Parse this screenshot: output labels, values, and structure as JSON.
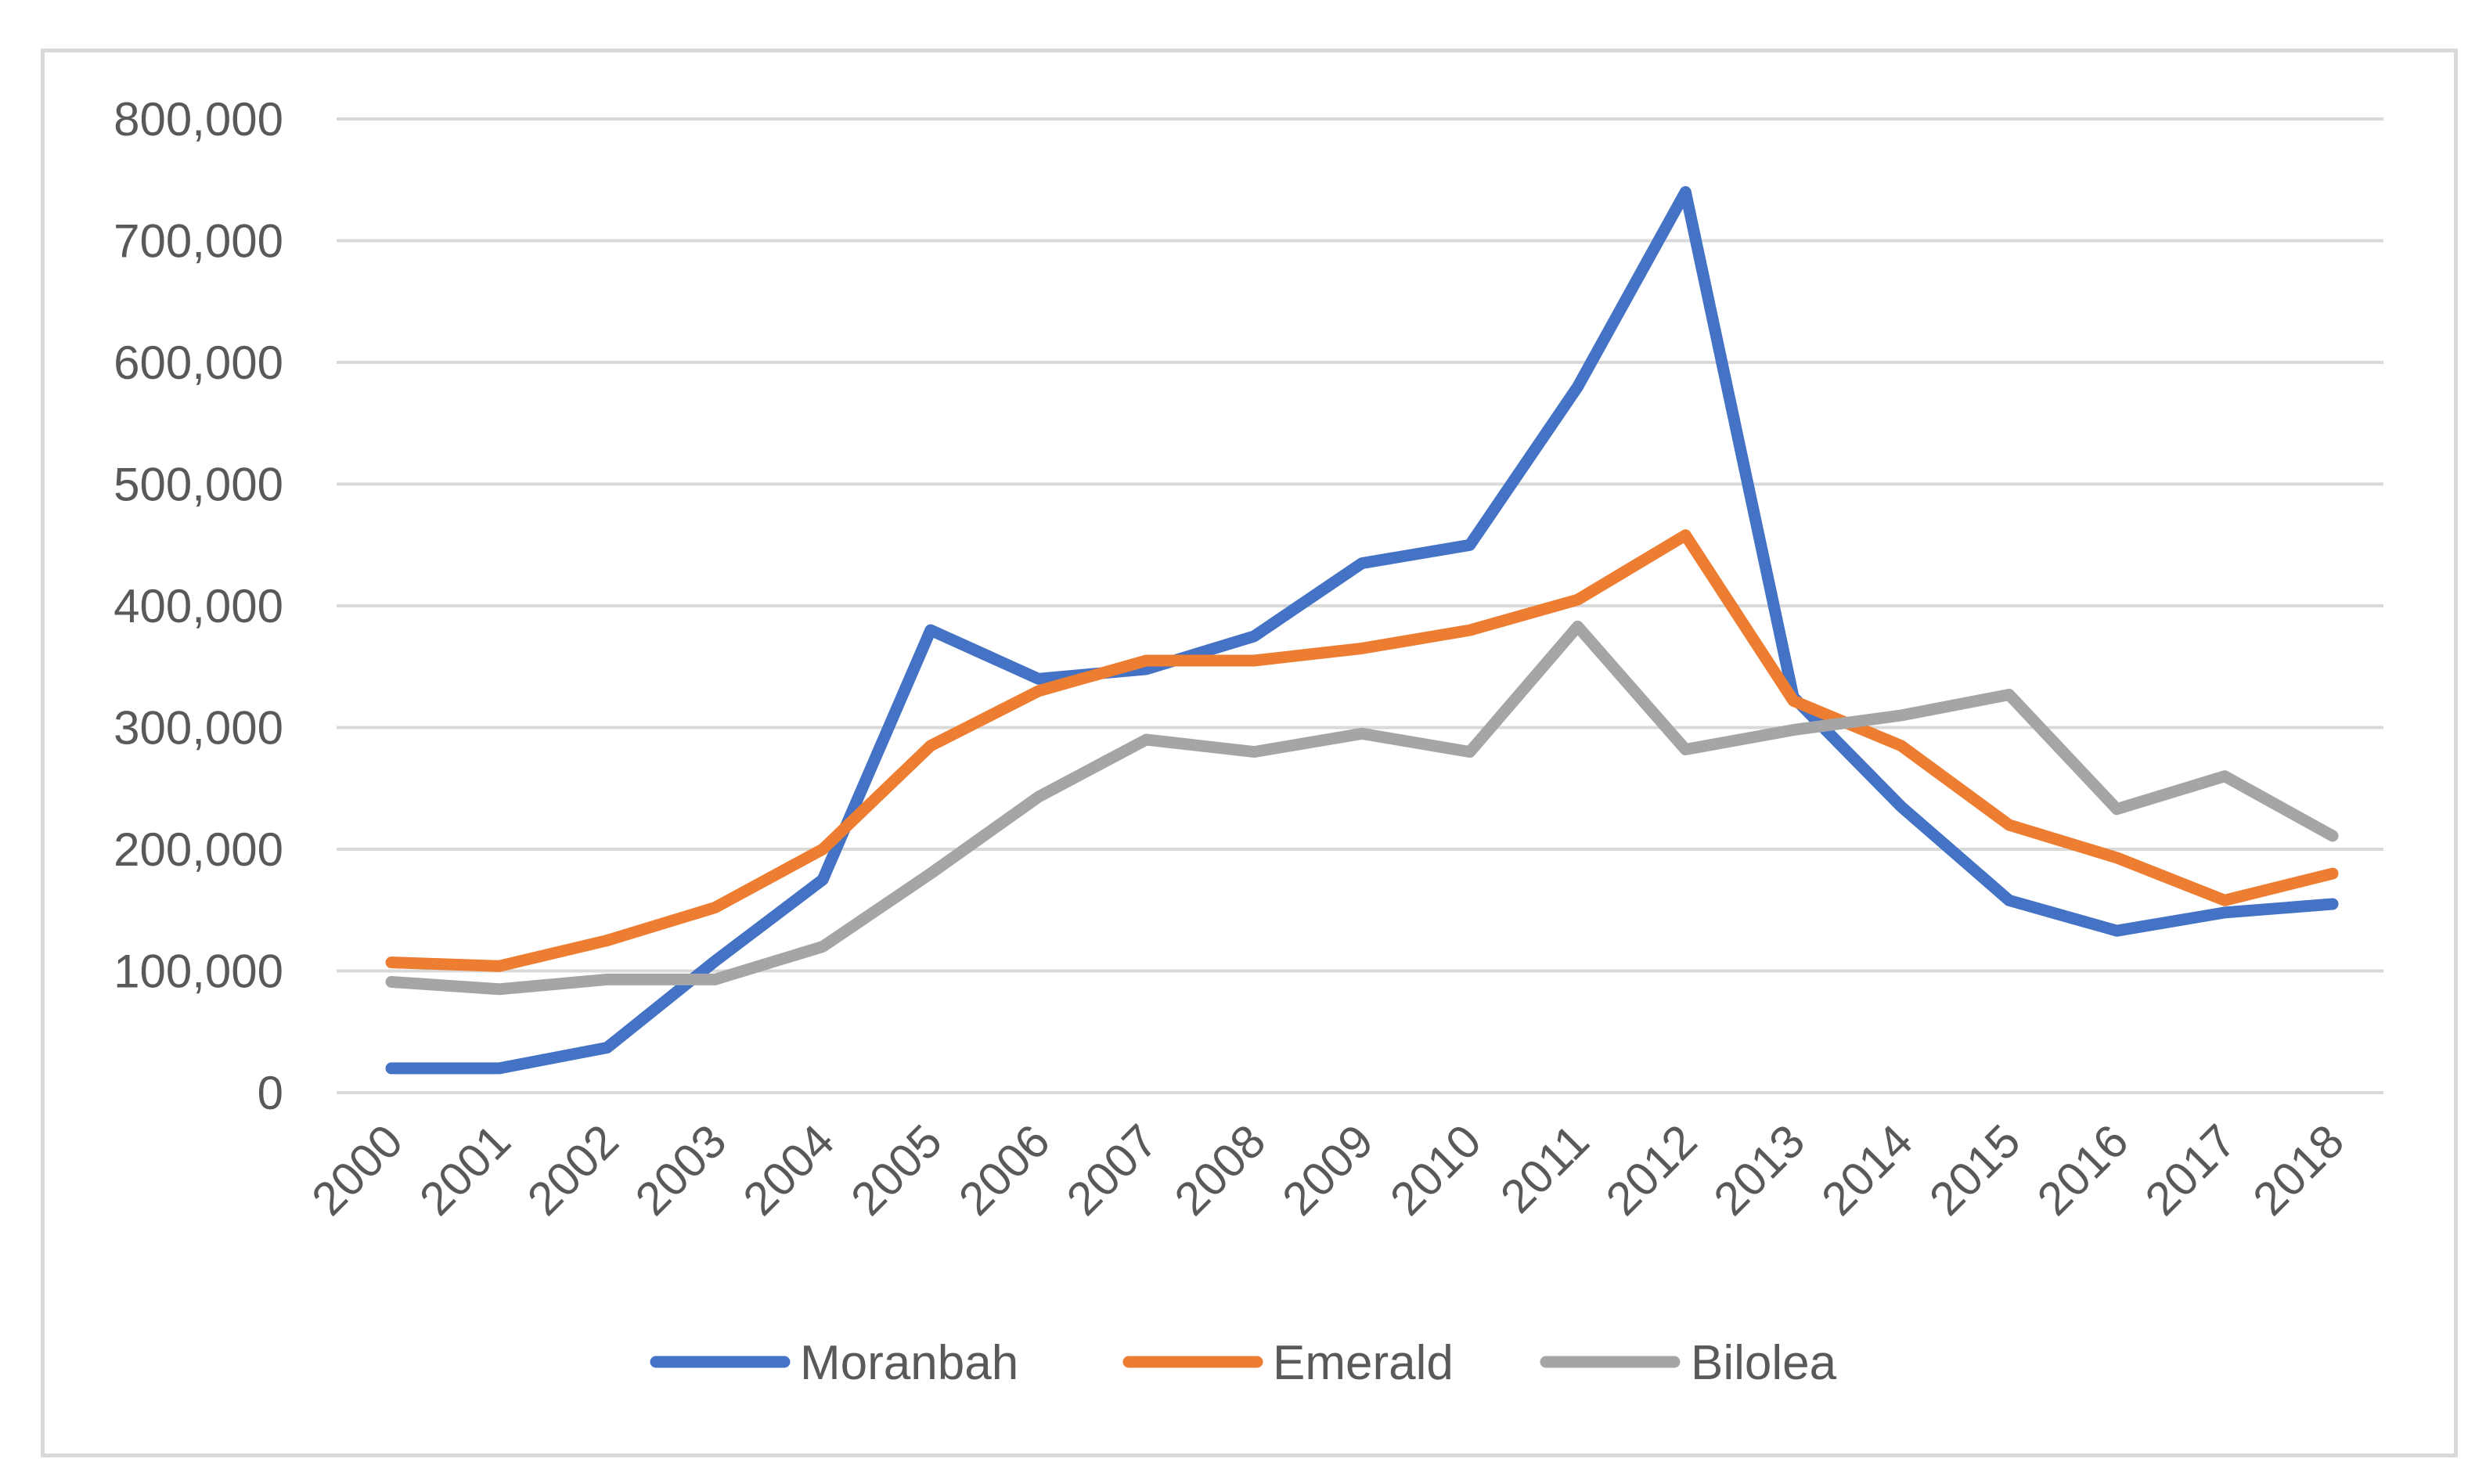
{
  "chart_data": {
    "type": "line",
    "title": "",
    "xlabel": "",
    "ylabel": "",
    "categories": [
      "2000",
      "2001",
      "2002",
      "2003",
      "2004",
      "2005",
      "2006",
      "2007",
      "2008",
      "2009",
      "2010",
      "2011",
      "2012",
      "2013",
      "2014",
      "2015",
      "2016",
      "2017",
      "2018"
    ],
    "ylim": [
      0,
      800000
    ],
    "yticks": [
      0,
      100000,
      200000,
      300000,
      400000,
      500000,
      600000,
      700000,
      800000
    ],
    "ytick_labels": [
      "0",
      "100,000",
      "200,000",
      "300,000",
      "400,000",
      "500,000",
      "600,000",
      "700,000",
      "800,000"
    ],
    "grid": "horizontal",
    "legend_position": "bottom",
    "series": [
      {
        "name": "Moranbah",
        "color": "#4472c4",
        "values": [
          20000,
          20000,
          37000,
          108000,
          175000,
          380000,
          340000,
          348000,
          375000,
          435000,
          450000,
          580000,
          740000,
          325000,
          235000,
          158000,
          133000,
          148000,
          155000
        ]
      },
      {
        "name": "Emerald",
        "color": "#ed7d31",
        "values": [
          107000,
          104000,
          125000,
          152000,
          200000,
          285000,
          330000,
          355000,
          355000,
          365000,
          380000,
          405000,
          458000,
          322000,
          285000,
          220000,
          193000,
          158000,
          180000
        ]
      },
      {
        "name": "Bilolea",
        "color": "#a5a5a5",
        "values": [
          91000,
          85000,
          93000,
          93000,
          120000,
          180000,
          243000,
          290000,
          280000,
          295000,
          280000,
          383000,
          282000,
          298000,
          310000,
          327000,
          233000,
          260000,
          211000
        ]
      }
    ]
  }
}
